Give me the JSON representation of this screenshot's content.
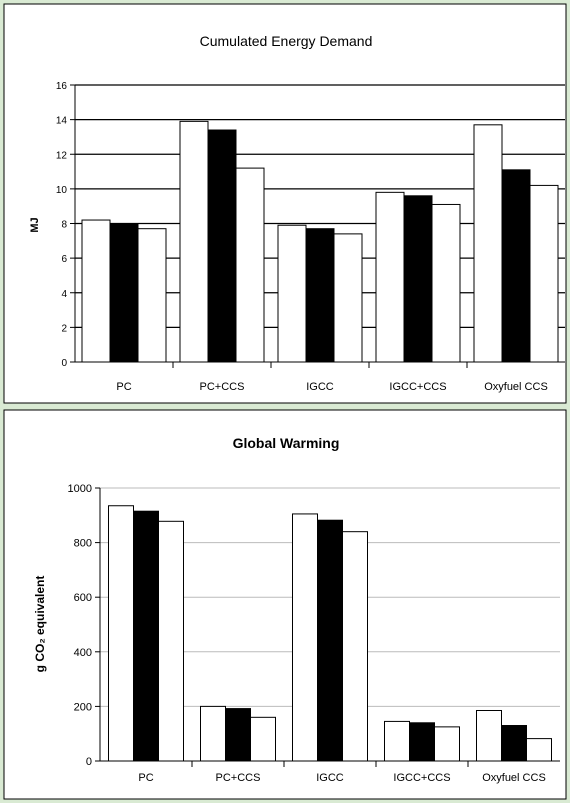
{
  "chart_data": [
    {
      "type": "bar",
      "title": "Cumulated Energy Demand",
      "xlabel": "",
      "ylabel": "MJ",
      "ylim": [
        0,
        16
      ],
      "yticks": [
        "0",
        "2",
        "4",
        "6",
        "8",
        "10",
        "12",
        "14",
        "16"
      ],
      "grid": true,
      "categories": [
        "PC",
        "PC+CCS",
        "IGCC",
        "IGCC+CCS",
        "Oxyfuel CCS"
      ],
      "series": [
        {
          "values": [
            8.2,
            13.9,
            7.9,
            9.8,
            13.7
          ],
          "color": "#ffffff"
        },
        {
          "values": [
            8.0,
            13.4,
            7.7,
            9.6,
            11.1
          ],
          "color": "#000000"
        },
        {
          "values": [
            7.7,
            11.2,
            7.4,
            9.1,
            10.2
          ],
          "color": "#ffffff"
        }
      ]
    },
    {
      "type": "bar",
      "title": "Global Warming",
      "xlabel": "",
      "ylabel": "g CO₂ equivalent",
      "ylim": [
        0,
        1000
      ],
      "yticks": [
        "0",
        "200",
        "400",
        "600",
        "800",
        "1000"
      ],
      "grid": true,
      "categories": [
        "PC",
        "PC+CCS",
        "IGCC",
        "IGCC+CCS",
        "Oxyfuel CCS"
      ],
      "series": [
        {
          "values": [
            935,
            200,
            905,
            145,
            185
          ],
          "color": "#ffffff"
        },
        {
          "values": [
            915,
            192,
            882,
            140,
            130
          ],
          "color": "#000000"
        },
        {
          "values": [
            878,
            160,
            840,
            125,
            82
          ],
          "color": "#ffffff"
        }
      ]
    }
  ]
}
